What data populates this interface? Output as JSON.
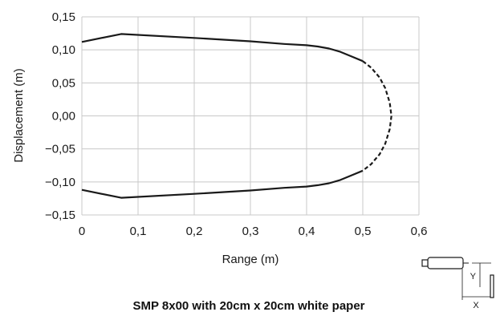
{
  "chart_data": {
    "type": "line",
    "xlabel": "Range (m)",
    "ylabel": "Displacement (m)",
    "xlim": [
      0,
      0.6
    ],
    "ylim": [
      -0.15,
      0.15
    ],
    "x_ticks": [
      0,
      0.1,
      0.2,
      0.3,
      0.4,
      0.5,
      0.6
    ],
    "x_tick_labels": [
      "0",
      "0,1",
      "0,2",
      "0,3",
      "0,4",
      "0,5",
      "0,6"
    ],
    "y_ticks": [
      0.15,
      0.1,
      0.05,
      0.0,
      -0.05,
      -0.1,
      -0.15
    ],
    "y_tick_labels": [
      "0,15",
      "0,10",
      "0,05",
      "0,00",
      "−0,05",
      "−0,10",
      "−0,15"
    ],
    "grid": true,
    "series": [
      {
        "style": "solid",
        "color": "#1a1a1a",
        "points": [
          [
            0.0,
            0.112
          ],
          [
            0.07,
            0.124
          ],
          [
            0.2,
            0.118
          ],
          [
            0.3,
            0.113
          ],
          [
            0.36,
            0.109
          ],
          [
            0.4,
            0.107
          ],
          [
            0.42,
            0.105
          ],
          [
            0.44,
            0.102
          ],
          [
            0.46,
            0.097
          ],
          [
            0.48,
            0.09
          ],
          [
            0.5,
            0.083
          ]
        ]
      },
      {
        "style": "dashed",
        "color": "#1a1a1a",
        "points": [
          [
            0.5,
            0.083
          ],
          [
            0.515,
            0.073
          ],
          [
            0.53,
            0.058
          ],
          [
            0.54,
            0.042
          ],
          [
            0.548,
            0.02
          ],
          [
            0.551,
            0.0
          ],
          [
            0.548,
            -0.02
          ],
          [
            0.54,
            -0.042
          ],
          [
            0.53,
            -0.058
          ],
          [
            0.515,
            -0.073
          ],
          [
            0.5,
            -0.083
          ]
        ]
      },
      {
        "style": "solid",
        "color": "#1a1a1a",
        "points": [
          [
            0.5,
            -0.083
          ],
          [
            0.48,
            -0.09
          ],
          [
            0.46,
            -0.097
          ],
          [
            0.44,
            -0.102
          ],
          [
            0.42,
            -0.105
          ],
          [
            0.4,
            -0.107
          ],
          [
            0.36,
            -0.109
          ],
          [
            0.3,
            -0.113
          ],
          [
            0.2,
            -0.118
          ],
          [
            0.07,
            -0.124
          ],
          [
            0.0,
            -0.112
          ]
        ]
      }
    ]
  },
  "caption": "SMP 8x00 with 20cm x 20cm white paper",
  "diagram": {
    "y_label": "Y",
    "x_label": "X"
  }
}
